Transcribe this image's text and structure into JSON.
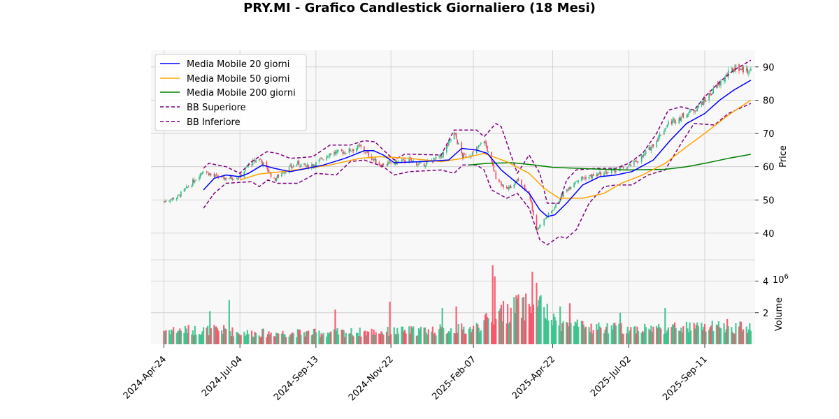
{
  "chart_data": {
    "type": "candlestick",
    "title": "PRY.MI - Grafico Candlestick Giornaliero (18 Mesi)",
    "price_panel": {
      "ylabel": "Price",
      "ylim": [
        32,
        95
      ],
      "yticks": [
        40,
        50,
        60,
        70,
        80,
        90
      ],
      "grid": true,
      "legend_position": "top-left"
    },
    "volume_panel": {
      "ylabel": "Volume",
      "scale_label": "10^6",
      "ylim": [
        0,
        5.0
      ],
      "yticks": [
        2,
        4
      ],
      "grid": true
    },
    "x_axis": {
      "type": "date",
      "range": [
        "2024-04-12",
        "2025-10-28"
      ],
      "ticks": [
        "2024-04-24",
        "2024-07-04",
        "2024-09-13",
        "2024-11-22",
        "2025-02-07",
        "2025-04-22",
        "2025-07-02",
        "2025-09-11"
      ],
      "tick_labels": [
        "2024-Apr-24",
        "2024-Jul-04",
        "2024-Sep-13",
        "2024-Nov-22",
        "2025-Feb-07",
        "2025-Apr-22",
        "2025-Jul-02",
        "2025-Sep-11"
      ]
    },
    "colors": {
      "up": "#2ebd85",
      "down": "#f6465d",
      "sma20": "#0000ff",
      "sma50": "#ffa500",
      "sma200": "#008000",
      "bb": "#800080",
      "panel_bg": "#f8f8f8",
      "grid": "#cccccc"
    },
    "price_anchors": [
      [
        "2024-04-24",
        49.5
      ],
      [
        "2024-05-07",
        51
      ],
      [
        "2024-05-20",
        55
      ],
      [
        "2024-05-31",
        59
      ],
      [
        "2024-06-10",
        57
      ],
      [
        "2024-06-21",
        56.5
      ],
      [
        "2024-07-04",
        57
      ],
      [
        "2024-07-12",
        60.5
      ],
      [
        "2024-07-22",
        62.5
      ],
      [
        "2024-07-30",
        59
      ],
      [
        "2024-08-05",
        56
      ],
      [
        "2024-08-13",
        58.5
      ],
      [
        "2024-08-27",
        61
      ],
      [
        "2024-09-05",
        60
      ],
      [
        "2024-09-13",
        61
      ],
      [
        "2024-09-26",
        64
      ],
      [
        "2024-10-10",
        64.5
      ],
      [
        "2024-10-24",
        66
      ],
      [
        "2024-11-01",
        63.5
      ],
      [
        "2024-11-12",
        60.5
      ],
      [
        "2024-11-22",
        61
      ],
      [
        "2024-12-09",
        62
      ],
      [
        "2024-12-20",
        60.5
      ],
      [
        "2025-01-08",
        63
      ],
      [
        "2025-01-20",
        70
      ],
      [
        "2025-01-28",
        63
      ],
      [
        "2025-02-07",
        64
      ],
      [
        "2025-02-17",
        68
      ],
      [
        "2025-02-28",
        57
      ],
      [
        "2025-03-10",
        53
      ],
      [
        "2025-03-20",
        56
      ],
      [
        "2025-03-31",
        52
      ],
      [
        "2025-04-07",
        41
      ],
      [
        "2025-04-14",
        44
      ],
      [
        "2025-04-22",
        47
      ],
      [
        "2025-05-02",
        52
      ],
      [
        "2025-05-14",
        56
      ],
      [
        "2025-05-26",
        57
      ],
      [
        "2025-06-09",
        58
      ],
      [
        "2025-06-20",
        59
      ],
      [
        "2025-07-02",
        60
      ],
      [
        "2025-07-15",
        63
      ],
      [
        "2025-07-28",
        68
      ],
      [
        "2025-08-08",
        73
      ],
      [
        "2025-08-20",
        75
      ],
      [
        "2025-09-01",
        77
      ],
      [
        "2025-09-11",
        80
      ],
      [
        "2025-09-22",
        84
      ],
      [
        "2025-10-03",
        88
      ],
      [
        "2025-10-10",
        90
      ],
      [
        "2025-10-20",
        89
      ]
    ],
    "sma20": [
      [
        "2024-05-31",
        53
      ],
      [
        "2024-06-10",
        56.5
      ],
      [
        "2024-06-21",
        57.5
      ],
      [
        "2024-07-04",
        57
      ],
      [
        "2024-07-12",
        58
      ],
      [
        "2024-07-25",
        60.5
      ],
      [
        "2024-08-05",
        59.5
      ],
      [
        "2024-08-20",
        58.5
      ],
      [
        "2024-09-05",
        59.5
      ],
      [
        "2024-09-20",
        60.5
      ],
      [
        "2024-10-10",
        62.5
      ],
      [
        "2024-10-28",
        64.8
      ],
      [
        "2024-11-06",
        64.8
      ],
      [
        "2024-11-15",
        63.5
      ],
      [
        "2024-11-25",
        61.2
      ],
      [
        "2024-12-20",
        61.5
      ],
      [
        "2025-01-15",
        62
      ],
      [
        "2025-01-27",
        65.5
      ],
      [
        "2025-02-10",
        65
      ],
      [
        "2025-02-20",
        64
      ],
      [
        "2025-03-05",
        59
      ],
      [
        "2025-03-20",
        55
      ],
      [
        "2025-03-31",
        52
      ],
      [
        "2025-04-10",
        47
      ],
      [
        "2025-04-17",
        45
      ],
      [
        "2025-04-24",
        45.5
      ],
      [
        "2025-05-05",
        49
      ],
      [
        "2025-05-20",
        54.5
      ],
      [
        "2025-06-05",
        57
      ],
      [
        "2025-06-20",
        57.5
      ],
      [
        "2025-07-05",
        58.5
      ],
      [
        "2025-07-25",
        62
      ],
      [
        "2025-08-10",
        68
      ],
      [
        "2025-08-25",
        73
      ],
      [
        "2025-09-11",
        76
      ],
      [
        "2025-09-25",
        80
      ],
      [
        "2025-10-08",
        83
      ],
      [
        "2025-10-24",
        86
      ]
    ],
    "sma50": [
      [
        "2024-07-04",
        56
      ],
      [
        "2024-07-22",
        57.8
      ],
      [
        "2024-08-13",
        58.5
      ],
      [
        "2024-09-05",
        59.5
      ],
      [
        "2024-09-26",
        60.5
      ],
      [
        "2024-10-24",
        62.5
      ],
      [
        "2024-11-12",
        63
      ],
      [
        "2024-12-09",
        62.5
      ],
      [
        "2025-01-08",
        61.5
      ],
      [
        "2025-01-28",
        62.5
      ],
      [
        "2025-02-17",
        64
      ],
      [
        "2025-03-10",
        61.5
      ],
      [
        "2025-03-31",
        58
      ],
      [
        "2025-04-14",
        53.5
      ],
      [
        "2025-04-28",
        50.5
      ],
      [
        "2025-05-20",
        50.5
      ],
      [
        "2025-06-09",
        52
      ],
      [
        "2025-06-25",
        55
      ],
      [
        "2025-07-15",
        57.5
      ],
      [
        "2025-08-05",
        61
      ],
      [
        "2025-08-25",
        66
      ],
      [
        "2025-09-11",
        70
      ],
      [
        "2025-10-03",
        75.5
      ],
      [
        "2025-10-24",
        80
      ]
    ],
    "sma200": [
      [
        "2025-02-03",
        60.5
      ],
      [
        "2025-02-20",
        61
      ],
      [
        "2025-03-15",
        61.2
      ],
      [
        "2025-04-05",
        60.5
      ],
      [
        "2025-04-22",
        59.8
      ],
      [
        "2025-05-15",
        59.5
      ],
      [
        "2025-06-09",
        59.2
      ],
      [
        "2025-07-02",
        59
      ],
      [
        "2025-08-05",
        59.2
      ],
      [
        "2025-08-25",
        60
      ],
      [
        "2025-09-11",
        61
      ],
      [
        "2025-10-03",
        62.5
      ],
      [
        "2025-10-24",
        63.7
      ]
    ],
    "bb_upper": [
      [
        "2024-05-31",
        59.5
      ],
      [
        "2024-06-05",
        61
      ],
      [
        "2024-06-21",
        60
      ],
      [
        "2024-07-04",
        58
      ],
      [
        "2024-07-15",
        61.5
      ],
      [
        "2024-07-29",
        64.5
      ],
      [
        "2024-08-08",
        64
      ],
      [
        "2024-08-20",
        62.5
      ],
      [
        "2024-09-10",
        63
      ],
      [
        "2024-09-26",
        66.5
      ],
      [
        "2024-10-15",
        66.5
      ],
      [
        "2024-10-28",
        67.8
      ],
      [
        "2024-11-07",
        67.5
      ],
      [
        "2024-11-15",
        65
      ],
      [
        "2024-11-25",
        62
      ],
      [
        "2024-12-05",
        63.8
      ],
      [
        "2025-01-08",
        63.5
      ],
      [
        "2025-01-20",
        71
      ],
      [
        "2025-02-10",
        71
      ],
      [
        "2025-02-17",
        69
      ],
      [
        "2025-02-28",
        73
      ],
      [
        "2025-03-05",
        72
      ],
      [
        "2025-03-20",
        58
      ],
      [
        "2025-03-31",
        63.5
      ],
      [
        "2025-04-10",
        58
      ],
      [
        "2025-04-17",
        49
      ],
      [
        "2025-04-28",
        49
      ],
      [
        "2025-05-05",
        56
      ],
      [
        "2025-05-14",
        59
      ],
      [
        "2025-06-02",
        59.5
      ],
      [
        "2025-06-20",
        59.5
      ],
      [
        "2025-07-02",
        61
      ],
      [
        "2025-07-15",
        64
      ],
      [
        "2025-07-28",
        70
      ],
      [
        "2025-08-08",
        77
      ],
      [
        "2025-08-20",
        78
      ],
      [
        "2025-09-01",
        77
      ],
      [
        "2025-09-11",
        81
      ],
      [
        "2025-09-25",
        85.5
      ],
      [
        "2025-10-08",
        89
      ],
      [
        "2025-10-24",
        92
      ]
    ],
    "bb_lower": [
      [
        "2024-05-31",
        47.5
      ],
      [
        "2024-06-10",
        52
      ],
      [
        "2024-06-21",
        55
      ],
      [
        "2024-07-15",
        55.5
      ],
      [
        "2024-07-22",
        54
      ],
      [
        "2024-07-30",
        56
      ],
      [
        "2024-08-08",
        55
      ],
      [
        "2024-08-27",
        55
      ],
      [
        "2024-09-13",
        58
      ],
      [
        "2024-10-02",
        57.5
      ],
      [
        "2024-10-15",
        61.5
      ],
      [
        "2024-10-28",
        62
      ],
      [
        "2024-11-15",
        60
      ],
      [
        "2024-11-25",
        57.5
      ],
      [
        "2024-12-09",
        58.5
      ],
      [
        "2025-01-08",
        59
      ],
      [
        "2025-01-20",
        58
      ],
      [
        "2025-01-28",
        60.5
      ],
      [
        "2025-02-10",
        60.5
      ],
      [
        "2025-02-17",
        59
      ],
      [
        "2025-02-24",
        53
      ],
      [
        "2025-03-10",
        50.5
      ],
      [
        "2025-03-20",
        52
      ],
      [
        "2025-03-31",
        47.5
      ],
      [
        "2025-04-10",
        38
      ],
      [
        "2025-04-17",
        36.5
      ],
      [
        "2025-04-28",
        39
      ],
      [
        "2025-05-05",
        38.5
      ],
      [
        "2025-05-14",
        41
      ],
      [
        "2025-05-26",
        49
      ],
      [
        "2025-06-09",
        54
      ],
      [
        "2025-06-20",
        54.5
      ],
      [
        "2025-07-05",
        54.5
      ],
      [
        "2025-07-20",
        57.5
      ],
      [
        "2025-08-05",
        59
      ],
      [
        "2025-08-20",
        67
      ],
      [
        "2025-09-01",
        73
      ],
      [
        "2025-09-20",
        72.5
      ],
      [
        "2025-10-03",
        76
      ],
      [
        "2025-10-24",
        79
      ]
    ],
    "volume_anchors": [
      [
        "2024-04-24",
        1.0
      ],
      [
        "2024-06-21",
        1.0
      ],
      [
        "2024-07-04",
        0.8
      ],
      [
        "2024-09-13",
        0.8
      ],
      [
        "2024-11-22",
        0.9
      ],
      [
        "2025-02-07",
        1.1
      ],
      [
        "2025-03-05",
        2.2
      ],
      [
        "2025-04-07",
        3.0
      ],
      [
        "2025-04-22",
        1.6
      ],
      [
        "2025-05-20",
        1.2
      ],
      [
        "2025-07-02",
        1.1
      ],
      [
        "2025-09-11",
        1.2
      ],
      [
        "2025-10-24",
        1.2
      ]
    ],
    "volume_spikes": [
      [
        "2024-06-06",
        2.1
      ],
      [
        "2024-06-24",
        2.8
      ],
      [
        "2024-10-01",
        2.2
      ],
      [
        "2024-11-21",
        2.7
      ],
      [
        "2025-01-09",
        2.3
      ],
      [
        "2025-01-22",
        2.4
      ],
      [
        "2025-02-25",
        5.0
      ],
      [
        "2025-02-27",
        4.3
      ],
      [
        "2025-03-05",
        2.5
      ],
      [
        "2025-03-19",
        3.1
      ],
      [
        "2025-03-26",
        3.0
      ],
      [
        "2025-04-03",
        4.6
      ],
      [
        "2025-04-07",
        3.9
      ],
      [
        "2025-04-09",
        2.8
      ],
      [
        "2025-04-29",
        2.4
      ],
      [
        "2025-05-08",
        2.6
      ],
      [
        "2025-06-24",
        2.0
      ],
      [
        "2025-08-05",
        2.3
      ],
      [
        "2025-10-02",
        1.6
      ]
    ],
    "legend": [
      {
        "label": "Media Mobile 20 giorni",
        "color": "#0000ff",
        "style": "solid"
      },
      {
        "label": "Media Mobile 50 giorni",
        "color": "#ffa500",
        "style": "solid"
      },
      {
        "label": "Media Mobile 200 giorni",
        "color": "#008000",
        "style": "solid"
      },
      {
        "label": "BB Superiore",
        "color": "#800080",
        "style": "dashed"
      },
      {
        "label": "BB Inferiore",
        "color": "#800080",
        "style": "dashed"
      }
    ]
  }
}
